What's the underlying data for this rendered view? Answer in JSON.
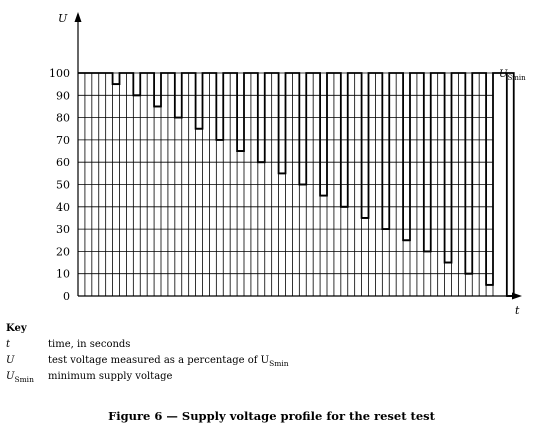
{
  "chart_data": {
    "type": "line",
    "xlabel": "t",
    "ylabel": "U",
    "ylim": [
      0,
      100
    ],
    "yticks": [
      "0",
      "10",
      "20",
      "30",
      "40",
      "50",
      "60",
      "70",
      "80",
      "90",
      "100"
    ],
    "baseline_label": "U",
    "baseline_label_sub": "Smin",
    "grid": true,
    "series": [
      {
        "values": [
          95,
          90,
          85,
          80,
          75,
          70,
          65,
          60,
          55,
          50,
          45,
          40,
          35,
          30,
          25,
          20,
          15,
          10,
          5,
          0
        ]
      }
    ]
  },
  "key": {
    "title": "Key",
    "items": [
      {
        "symbol": "t",
        "symbol_sub": "",
        "desc": "time, in seconds",
        "desc_sub": ""
      },
      {
        "symbol": "U",
        "symbol_sub": "",
        "desc": "test voltage measured as a percentage of U",
        "desc_sub": "Smin"
      },
      {
        "symbol": "U",
        "symbol_sub": "Smin",
        "desc": "minimum supply voltage",
        "desc_sub": ""
      }
    ]
  },
  "caption": "Figure 6 — Supply voltage profile for the reset test"
}
